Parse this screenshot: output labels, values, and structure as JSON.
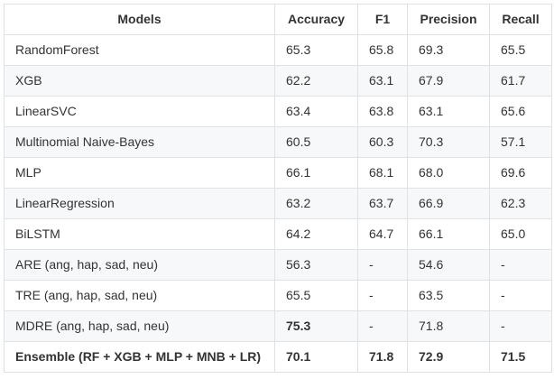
{
  "table": {
    "headers": [
      "Models",
      "Accuracy",
      "F1",
      "Precision",
      "Recall"
    ],
    "rows": [
      {
        "model": "RandomForest",
        "accuracy": "65.3",
        "f1": "65.8",
        "precision": "69.3",
        "recall": "65.5"
      },
      {
        "model": "XGB",
        "accuracy": "62.2",
        "f1": "63.1",
        "precision": "67.9",
        "recall": "61.7"
      },
      {
        "model": "LinearSVC",
        "accuracy": "63.4",
        "f1": "63.8",
        "precision": "63.1",
        "recall": "65.6"
      },
      {
        "model": "Multinomial Naive-Bayes",
        "accuracy": "60.5",
        "f1": "60.3",
        "precision": "70.3",
        "recall": "57.1"
      },
      {
        "model": "MLP",
        "accuracy": "66.1",
        "f1": "68.1",
        "precision": "68.0",
        "recall": "69.6"
      },
      {
        "model": "LinearRegression",
        "accuracy": "63.2",
        "f1": "63.7",
        "precision": "66.9",
        "recall": "62.3"
      },
      {
        "model": "BiLSTM",
        "accuracy": "64.2",
        "f1": "64.7",
        "precision": "66.1",
        "recall": "65.0"
      },
      {
        "model": "ARE (ang, hap, sad, neu)",
        "accuracy": "56.3",
        "f1": "-",
        "precision": "54.6",
        "recall": "-"
      },
      {
        "model": "TRE (ang, hap, sad, neu)",
        "accuracy": "65.5",
        "f1": "-",
        "precision": "63.5",
        "recall": "-"
      },
      {
        "model": "MDRE (ang, hap, sad, neu)",
        "accuracy": "75.3",
        "f1": "-",
        "precision": "71.8",
        "recall": "-"
      },
      {
        "model": "Ensemble (RF + XGB + MLP + MNB + LR)",
        "accuracy": "70.1",
        "f1": "71.8",
        "precision": "72.9",
        "recall": "71.5"
      }
    ]
  }
}
